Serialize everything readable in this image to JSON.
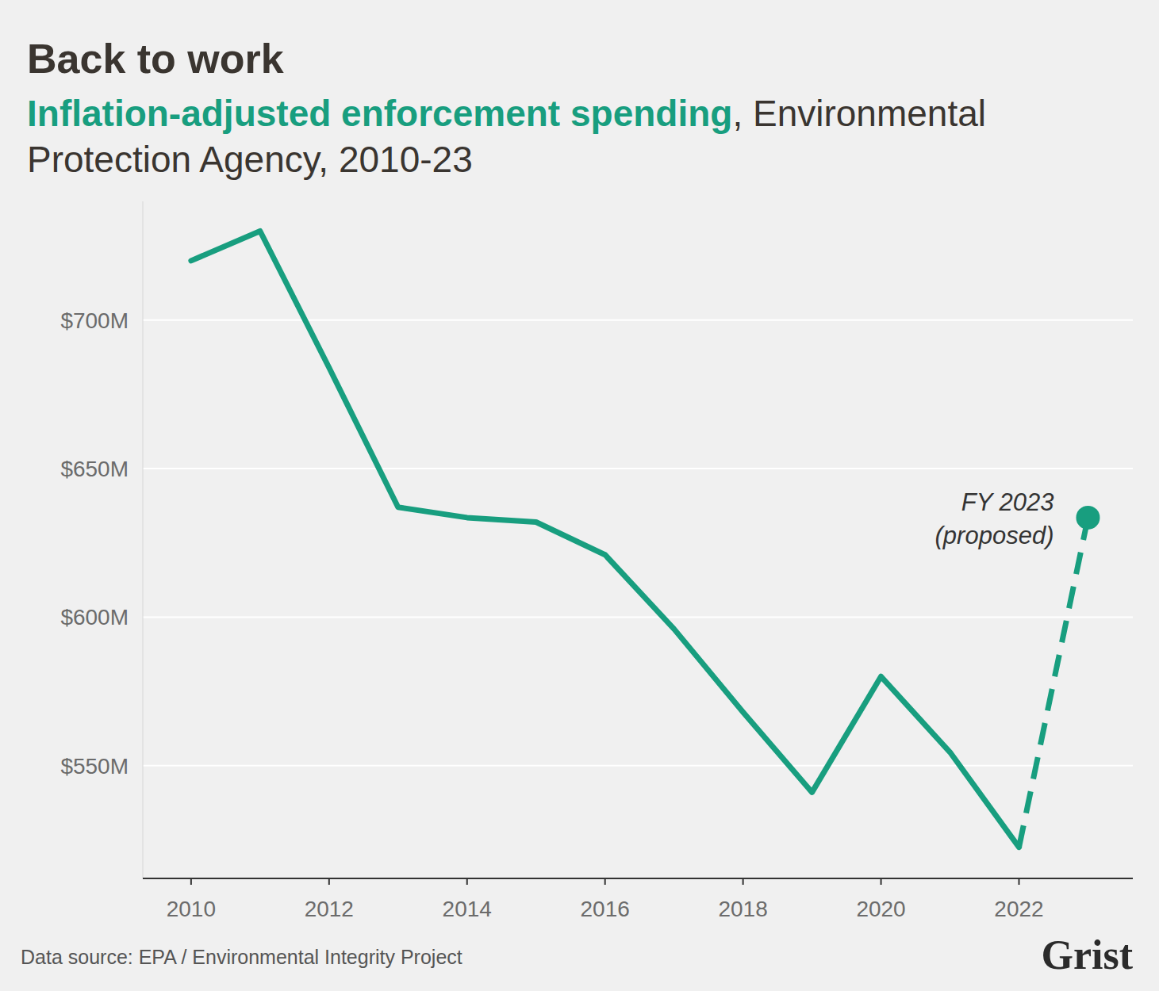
{
  "chart_data": {
    "type": "line",
    "title": "Back to work",
    "subtitle": [
      "Inflation-adjusted enforcement spending",
      ", Environmental Protection Agency, 2010-23"
    ],
    "x": [
      2010,
      2011,
      2012,
      2013,
      2014,
      2015,
      2016,
      2017,
      2018,
      2019,
      2020,
      2021,
      2022,
      2023
    ],
    "series": [
      {
        "color": "#189e7f",
        "line_style": "solid",
        "values": [
          720,
          730,
          684,
          637,
          633.5,
          632,
          621,
          596,
          568,
          541,
          580,
          554.5,
          522.5,
          null
        ]
      },
      {
        "color": "#189e7f",
        "line_style": "dashed",
        "marker": "circle",
        "values": [
          null,
          null,
          null,
          null,
          null,
          null,
          null,
          null,
          null,
          null,
          null,
          null,
          522.5,
          633.5
        ]
      }
    ],
    "annotation": [
      "FY 2023",
      "(proposed)"
    ],
    "xlim": [
      2009.3,
      2023.65
    ],
    "xticks": [
      2010,
      2012,
      2014,
      2016,
      2018,
      2020,
      2022
    ],
    "ylim": [
      512,
      740
    ],
    "yticks": [
      {
        "value": 550,
        "label": "$550M"
      },
      {
        "value": 600,
        "label": "$600M"
      },
      {
        "value": 650,
        "label": "$650M"
      },
      {
        "value": 700,
        "label": "$700M"
      }
    ],
    "grid": true,
    "source": "Data source: EPA / Environmental Integrity Project",
    "logo": "Grist"
  }
}
